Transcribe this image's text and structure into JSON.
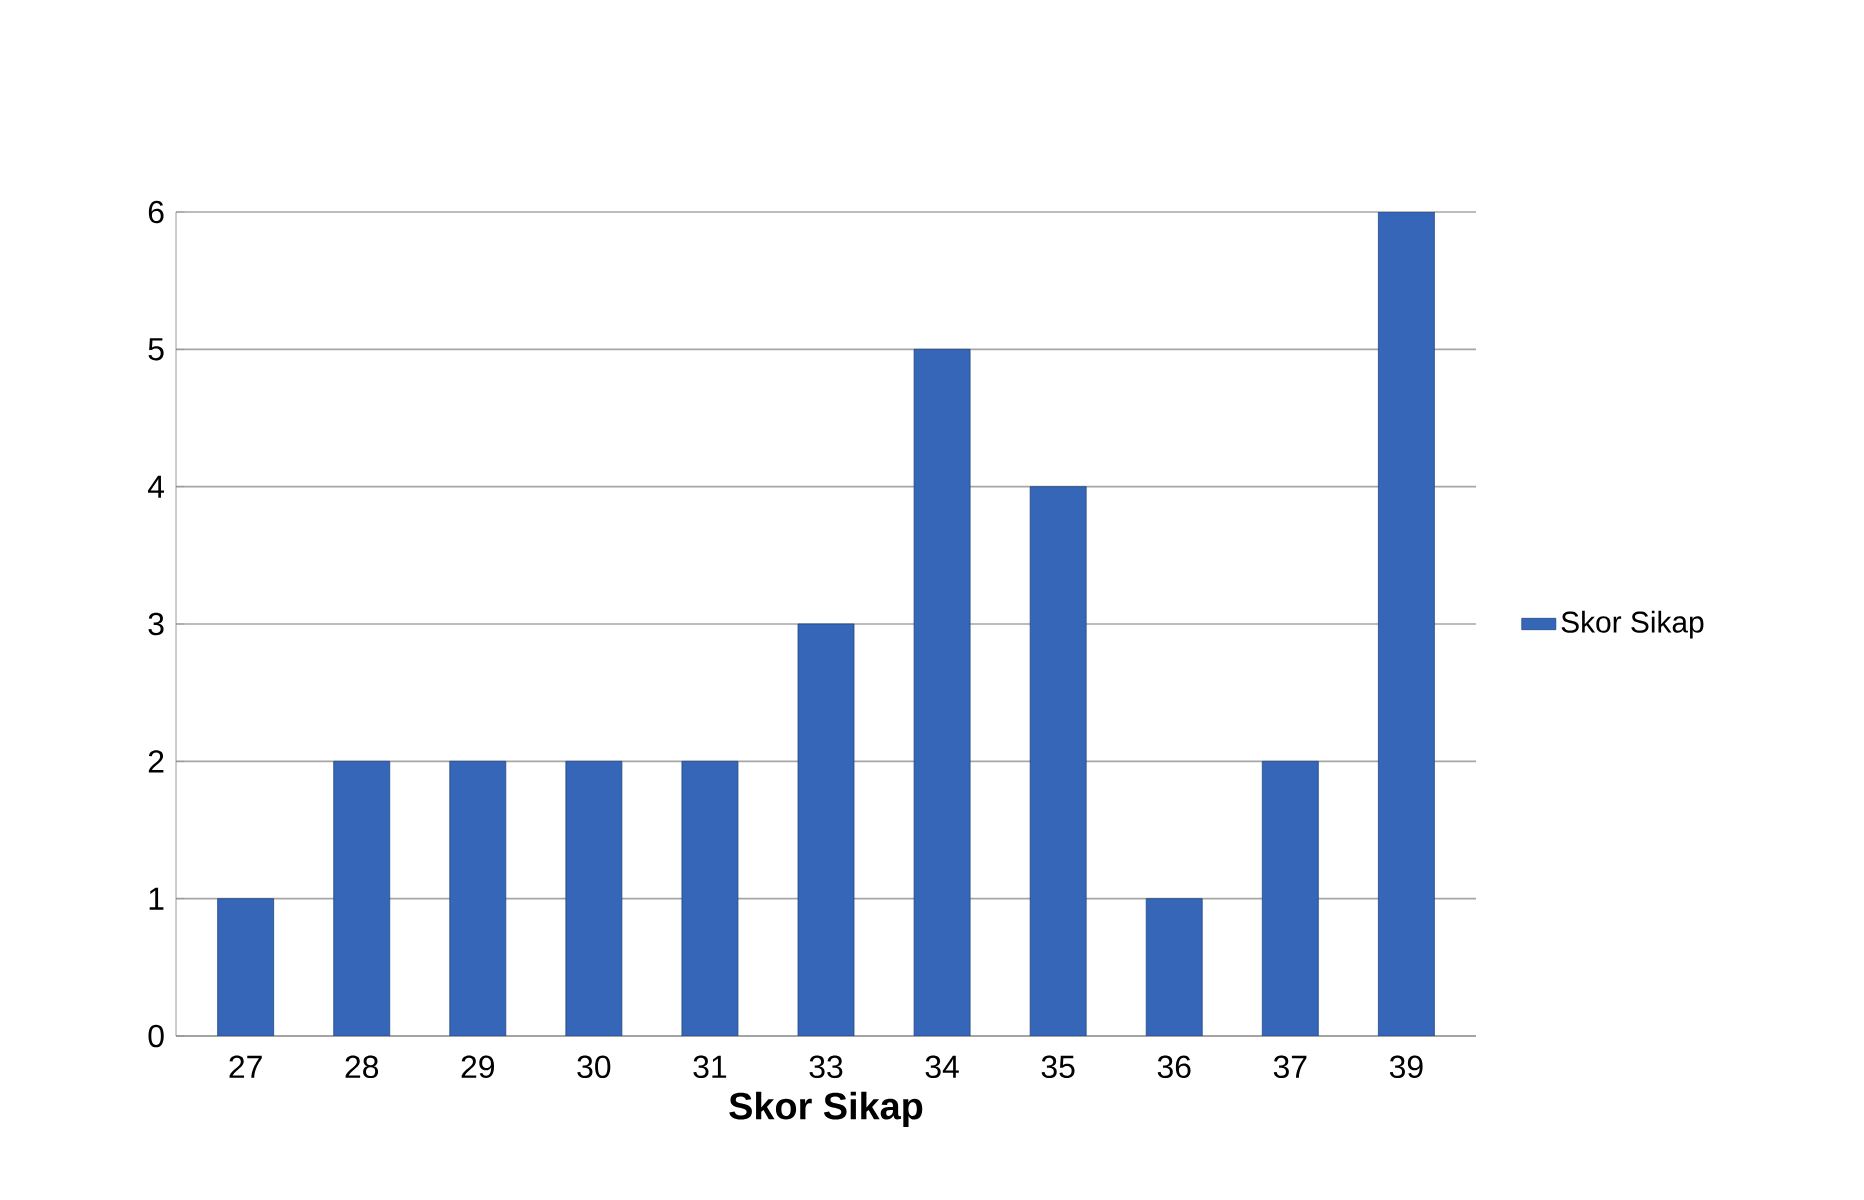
{
  "chart_data": {
    "type": "bar",
    "xlabel": "Skor Sikap",
    "categories": [
      "27",
      "28",
      "29",
      "30",
      "31",
      "33",
      "34",
      "35",
      "36",
      "37",
      "39"
    ],
    "series": [
      {
        "name": "Skor Sikap",
        "color": "#3566b8",
        "values": [
          1,
          2,
          2,
          2,
          2,
          3,
          5,
          4,
          1,
          2,
          6
        ]
      }
    ],
    "ylim": [
      0,
      6
    ],
    "yticks": [
      0,
      1,
      2,
      3,
      4,
      5,
      6
    ],
    "grid": "y",
    "legend": "right"
  }
}
